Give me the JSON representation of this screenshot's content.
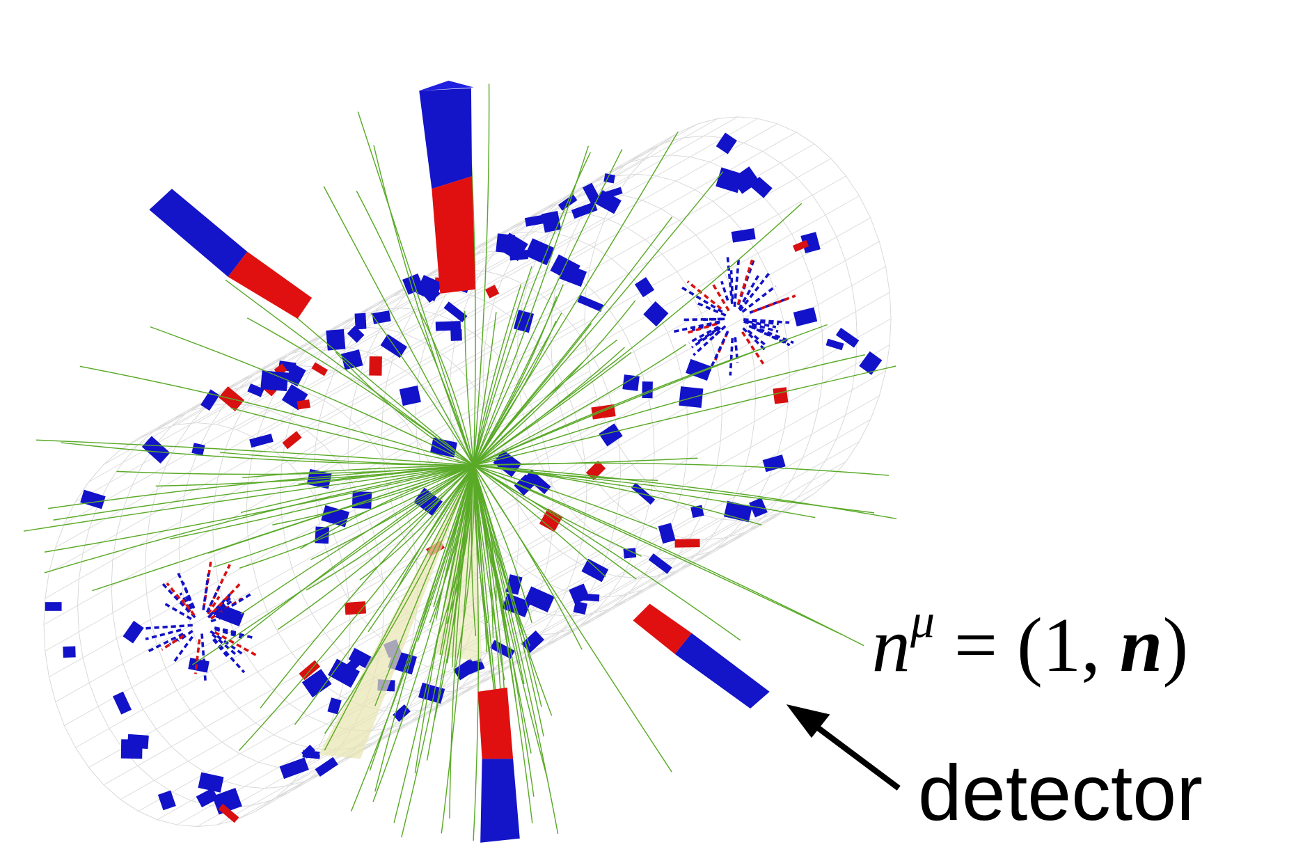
{
  "annotation": {
    "formula": [
      "n",
      "μ",
      " = (1, ",
      "n",
      ")"
    ],
    "label": "detector"
  }
}
